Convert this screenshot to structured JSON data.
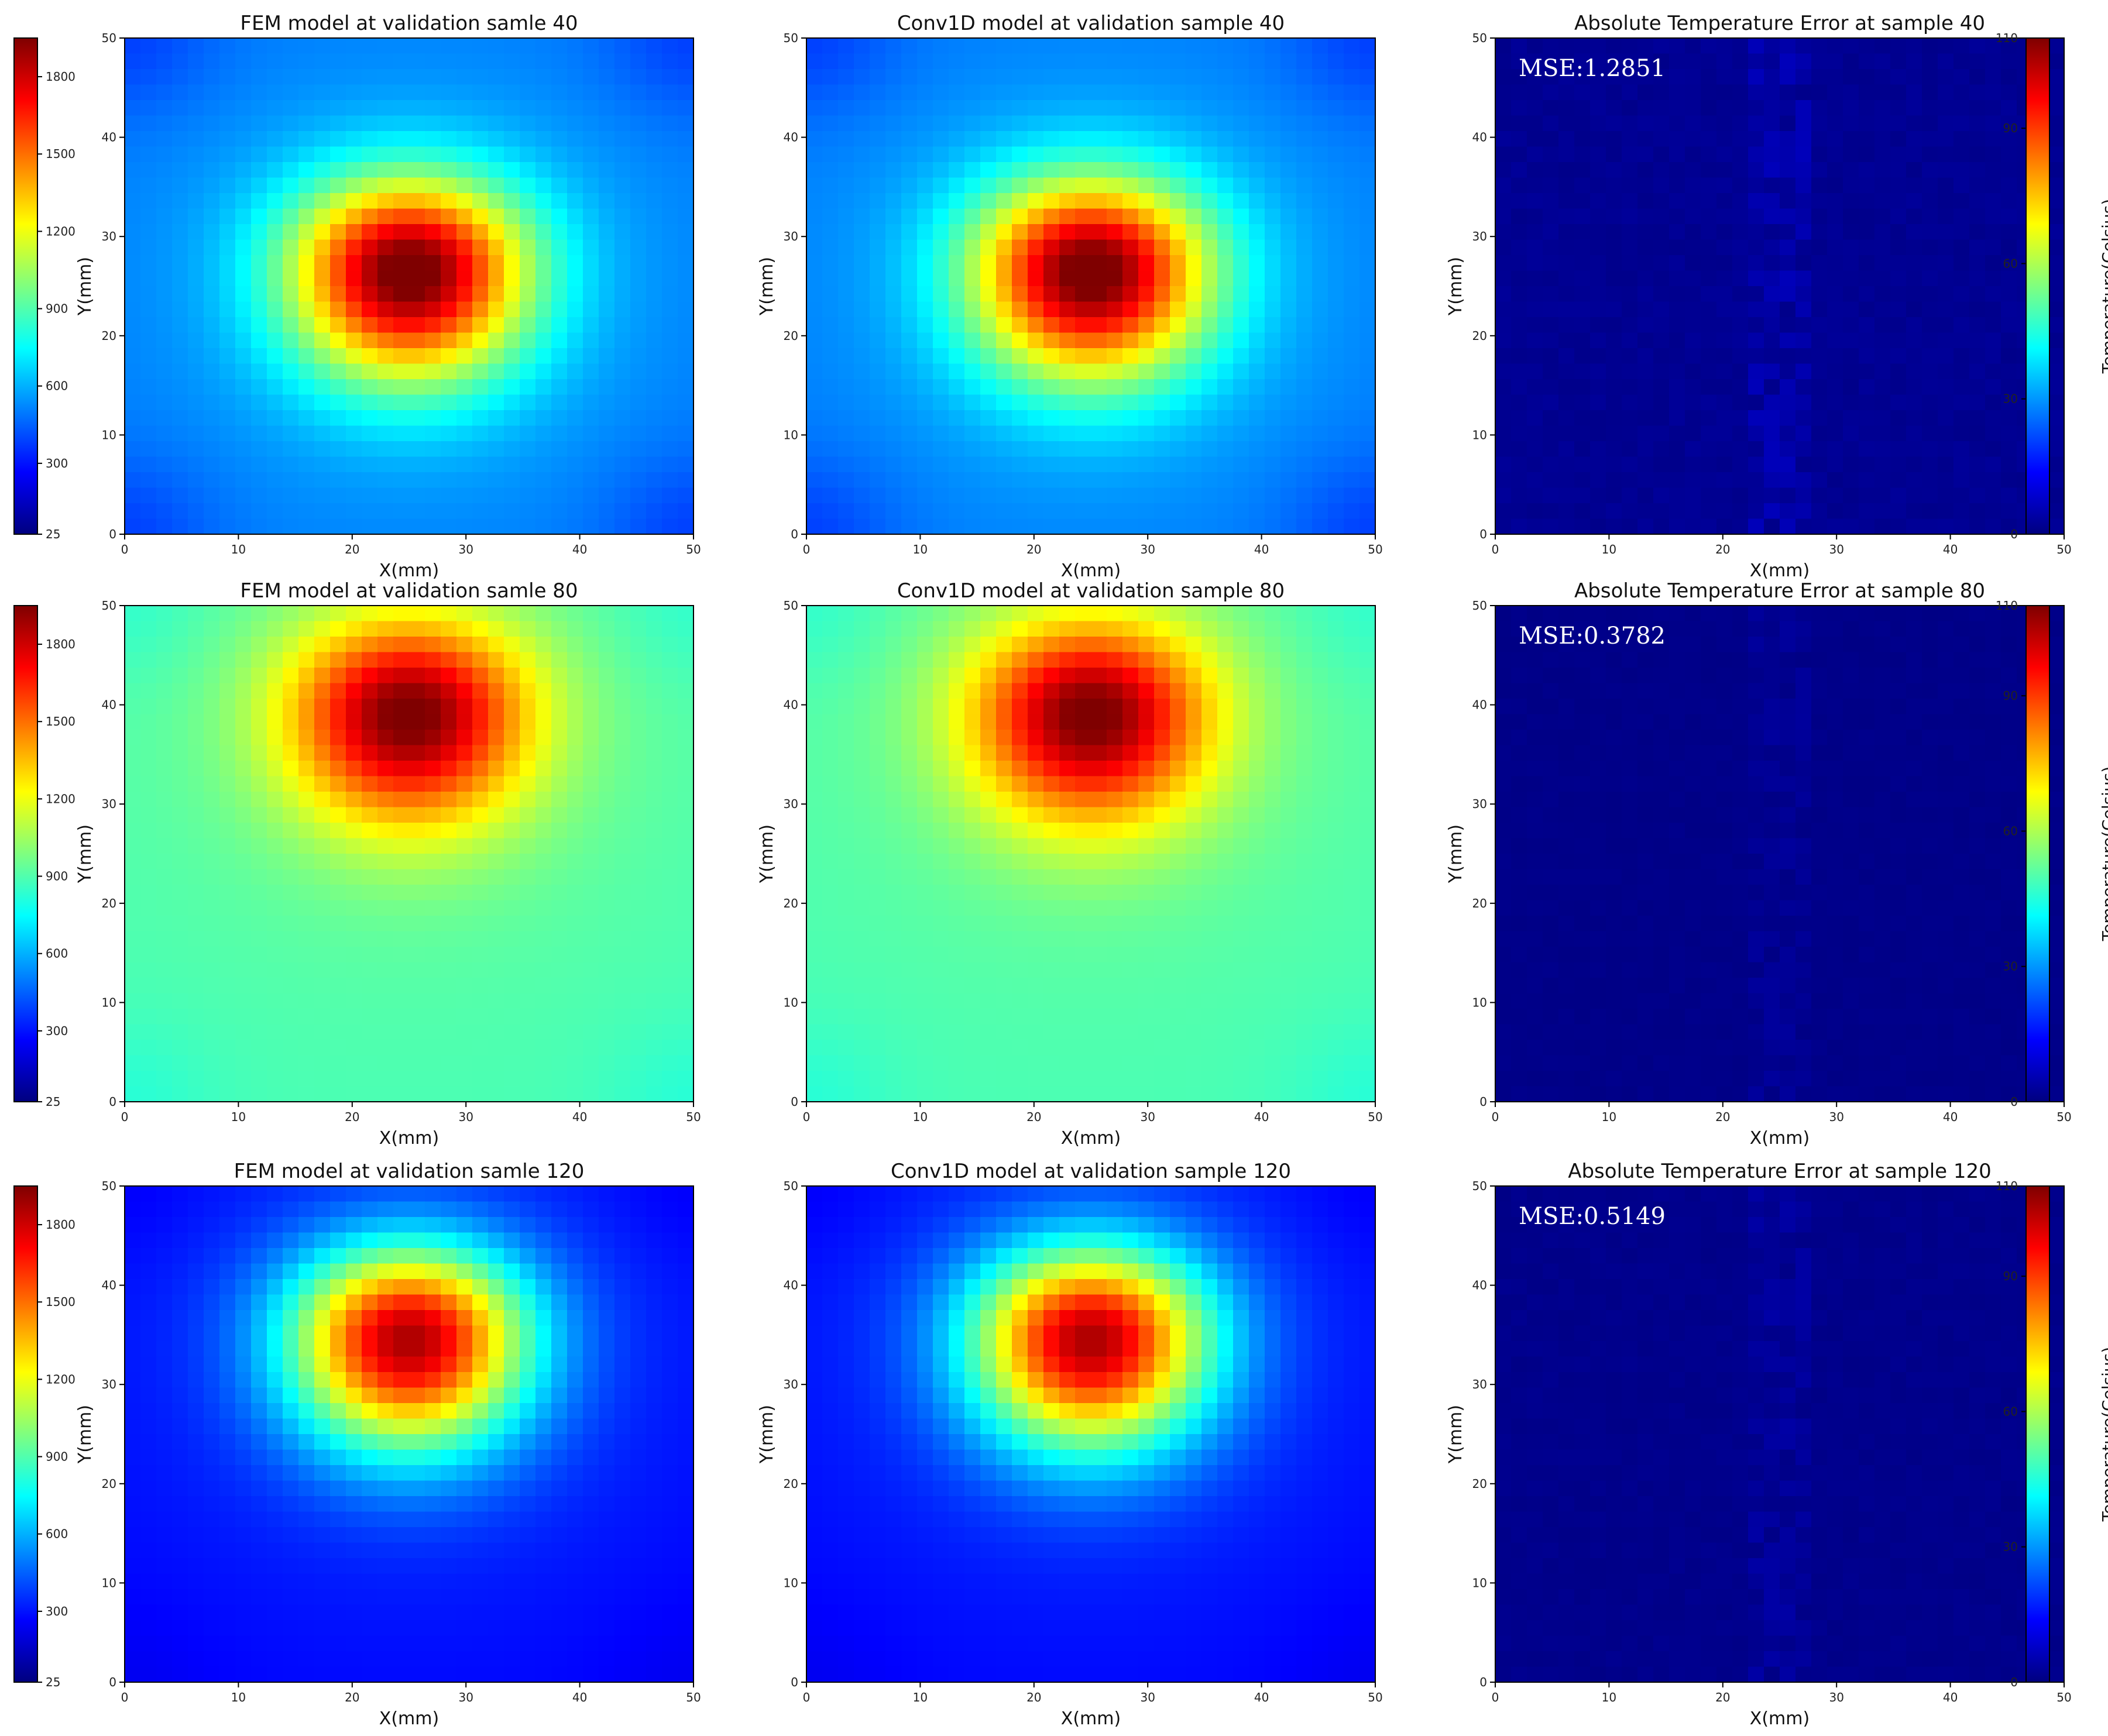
{
  "figure": {
    "colors": {
      "jet": [
        "#00007f",
        "#0000ff",
        "#007fff",
        "#00ffff",
        "#7fff7f",
        "#ffff00",
        "#ff7f00",
        "#ff0000",
        "#7f0000"
      ],
      "axis": "#000000",
      "mse_text": "#ffffff"
    }
  },
  "chart_data": [
    {
      "type": "heatmap",
      "panel": "FEM 40",
      "title": "FEM model at validation samle 40",
      "xlabel": "X(mm)",
      "ylabel": "Y(mm)",
      "xlim": [
        0,
        50
      ],
      "ylim": [
        0,
        50
      ],
      "xticks": [
        "0",
        "10",
        "20",
        "30",
        "40",
        "50"
      ],
      "yticks": [
        "0",
        "10",
        "20",
        "30",
        "40",
        "50"
      ],
      "field": {
        "peak_x": 25,
        "peak_y": 26.5,
        "peak_value": 1900,
        "background": 480,
        "corner_low": 370
      }
    },
    {
      "type": "heatmap",
      "panel": "Conv1D 40",
      "title": "Conv1D model at validation sample 40",
      "xlabel": "X(mm)",
      "ylabel": "Y(mm)",
      "xlim": [
        0,
        50
      ],
      "ylim": [
        0,
        50
      ],
      "xticks": [
        "0",
        "10",
        "20",
        "30",
        "40",
        "50"
      ],
      "yticks": [
        "0",
        "10",
        "20",
        "30",
        "40",
        "50"
      ],
      "field": {
        "peak_x": 25,
        "peak_y": 26.5,
        "peak_value": 1900,
        "background": 480,
        "corner_low": 370
      }
    },
    {
      "type": "heatmap",
      "panel": "Error 40",
      "title": "Absolute Temperature Error at sample 40",
      "xlabel": "X(mm)",
      "ylabel": "Y(mm)",
      "xlim": [
        0,
        50
      ],
      "ylim": [
        0,
        50
      ],
      "xticks": [
        "0",
        "10",
        "20",
        "30",
        "40",
        "50"
      ],
      "yticks": [
        "0",
        "10",
        "20",
        "30",
        "40",
        "50"
      ],
      "annotation": "MSE:1.2851",
      "field": {
        "error_level": 2,
        "error_max": 110
      }
    },
    {
      "type": "heatmap",
      "panel": "FEM 80",
      "title": "FEM model at validation samle 80",
      "xlabel": "X(mm)",
      "ylabel": "Y(mm)",
      "xlim": [
        0,
        50
      ],
      "ylim": [
        0,
        50
      ],
      "xticks": [
        "0",
        "10",
        "20",
        "30",
        "40",
        "50"
      ],
      "yticks": [
        "0",
        "10",
        "20",
        "30",
        "40",
        "50"
      ],
      "field": {
        "peak_x": 25,
        "peak_y": 39,
        "peak_value": 1900,
        "background": 880,
        "corner_low": 820
      }
    },
    {
      "type": "heatmap",
      "panel": "Conv1D 80",
      "title": "Conv1D model at validation sample 80",
      "xlabel": "X(mm)",
      "ylabel": "Y(mm)",
      "xlim": [
        0,
        50
      ],
      "ylim": [
        0,
        50
      ],
      "xticks": [
        "0",
        "10",
        "20",
        "30",
        "40",
        "50"
      ],
      "yticks": [
        "0",
        "10",
        "20",
        "30",
        "40",
        "50"
      ],
      "field": {
        "peak_x": 25,
        "peak_y": 39,
        "peak_value": 1900,
        "background": 880,
        "corner_low": 820
      }
    },
    {
      "type": "heatmap",
      "panel": "Error 80",
      "title": "Absolute Temperature Error at sample 80",
      "xlabel": "X(mm)",
      "ylabel": "Y(mm)",
      "xlim": [
        0,
        50
      ],
      "ylim": [
        0,
        50
      ],
      "xticks": [
        "0",
        "10",
        "20",
        "30",
        "40",
        "50"
      ],
      "yticks": [
        "0",
        "10",
        "20",
        "30",
        "40",
        "50"
      ],
      "annotation": "MSE:0.3782",
      "field": {
        "error_level": 1,
        "error_max": 110
      }
    },
    {
      "type": "heatmap",
      "panel": "FEM 120",
      "title": "FEM model at validation samle 120",
      "xlabel": "X(mm)",
      "ylabel": "Y(mm)",
      "xlim": [
        0,
        50
      ],
      "ylim": [
        0,
        50
      ],
      "xticks": [
        "0",
        "10",
        "20",
        "30",
        "40",
        "50"
      ],
      "yticks": [
        "0",
        "10",
        "20",
        "30",
        "40",
        "50"
      ],
      "field": {
        "peak_x": 25,
        "peak_y": 34.5,
        "peak_value": 1750,
        "background": 260,
        "corner_low": 230
      }
    },
    {
      "type": "heatmap",
      "panel": "Conv1D 120",
      "title": "Conv1D model at validation sample 120",
      "xlabel": "X(mm)",
      "ylabel": "Y(mm)",
      "xlim": [
        0,
        50
      ],
      "ylim": [
        0,
        50
      ],
      "xticks": [
        "0",
        "10",
        "20",
        "30",
        "40",
        "50"
      ],
      "yticks": [
        "0",
        "10",
        "20",
        "30",
        "40",
        "50"
      ],
      "field": {
        "peak_x": 25,
        "peak_y": 34.5,
        "peak_value": 1750,
        "background": 260,
        "corner_low": 230
      }
    },
    {
      "type": "heatmap",
      "panel": "Error 120",
      "title": "Absolute Temperature Error at sample 120",
      "xlabel": "X(mm)",
      "ylabel": "Y(mm)",
      "xlim": [
        0,
        50
      ],
      "ylim": [
        0,
        50
      ],
      "xticks": [
        "0",
        "10",
        "20",
        "30",
        "40",
        "50"
      ],
      "yticks": [
        "0",
        "10",
        "20",
        "30",
        "40",
        "50"
      ],
      "annotation": "MSE:0.5149",
      "field": {
        "error_level": 1.3,
        "error_max": 110
      }
    }
  ],
  "colorbars": {
    "temperature": {
      "range": [
        25,
        1950
      ],
      "ticks": [
        "25",
        "300",
        "600",
        "900",
        "1200",
        "1500",
        "1800"
      ],
      "tick_values": [
        25,
        300,
        600,
        900,
        1200,
        1500,
        1800
      ]
    },
    "error": {
      "range": [
        0,
        110
      ],
      "ticks": [
        "0",
        "30",
        "60",
        "90",
        "110"
      ],
      "tick_values": [
        0,
        30,
        60,
        90,
        110
      ],
      "label": "Temperature(Celsius)"
    }
  }
}
